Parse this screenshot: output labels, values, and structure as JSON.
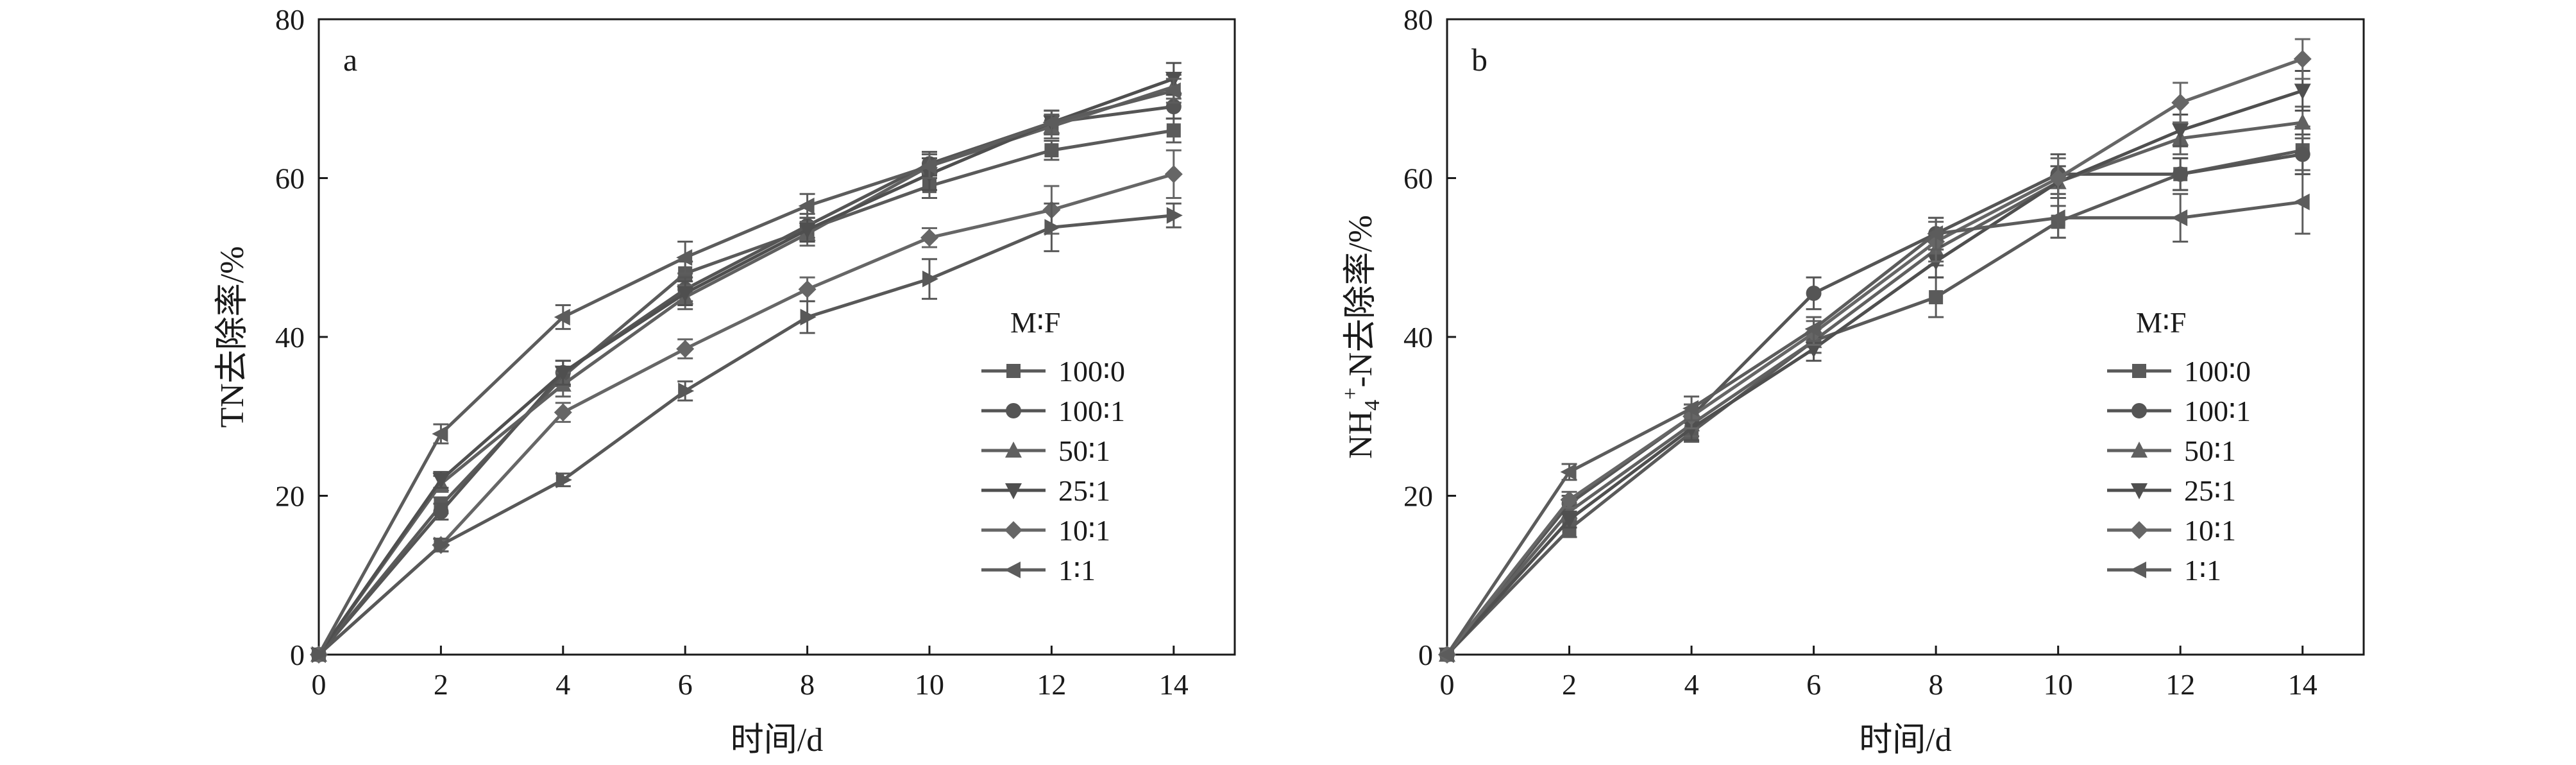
{
  "chart_data": [
    {
      "type": "line",
      "panel_label": "a",
      "xlabel": "时间/d",
      "ylabel": "TN去除率/%",
      "xlim": [
        0,
        15
      ],
      "ylim": [
        0,
        80
      ],
      "x_ticks": [
        "0",
        "2",
        "4",
        "6",
        "8",
        "10",
        "12",
        "14"
      ],
      "y_ticks": [
        "0",
        "20",
        "40",
        "60",
        "80"
      ],
      "legend_title": "M∶F",
      "legend_position": "center-right",
      "error_bars": true,
      "x": [
        0,
        2,
        4,
        6,
        8,
        10,
        12,
        14
      ],
      "series": [
        {
          "name": "100∶0",
          "marker": "square",
          "values": [
            0,
            18.8,
            35.0,
            48.0,
            53.5,
            59.0,
            63.5,
            66.0
          ],
          "errors": [
            0,
            1.0,
            1.2,
            1.5,
            1.5,
            1.5,
            1.2,
            1.5
          ]
        },
        {
          "name": "100∶1",
          "marker": "circle",
          "values": [
            0,
            18.0,
            35.5,
            46.0,
            54.0,
            61.8,
            67.0,
            69.0
          ],
          "errors": [
            0,
            1.0,
            1.5,
            1.5,
            1.5,
            1.5,
            1.5,
            1.5
          ]
        },
        {
          "name": "50∶1",
          "marker": "triangle-up",
          "values": [
            0,
            21.5,
            34.0,
            45.0,
            53.0,
            61.5,
            66.5,
            71.5
          ],
          "errors": [
            0,
            1.0,
            1.5,
            1.5,
            1.5,
            1.5,
            1.5,
            1.5
          ]
        },
        {
          "name": "25∶1",
          "marker": "triangle-down",
          "values": [
            0,
            22.0,
            35.5,
            45.5,
            53.5,
            60.5,
            67.0,
            72.5
          ],
          "errors": [
            0,
            1.0,
            1.5,
            1.5,
            1.5,
            2.0,
            1.5,
            2.0
          ]
        },
        {
          "name": "10∶1",
          "marker": "diamond",
          "values": [
            0,
            13.8,
            30.5,
            38.5,
            46.0,
            52.5,
            56.0,
            60.5
          ],
          "errors": [
            0,
            0.8,
            1.2,
            1.2,
            1.5,
            1.2,
            3.0,
            3.0
          ]
        },
        {
          "name": "1∶1",
          "marker": "triangle-left",
          "values": [
            0,
            27.8,
            42.5,
            50.0,
            56.5,
            61.5,
            67.0,
            71.0
          ],
          "errors": [
            0,
            1.2,
            1.5,
            2.0,
            1.5,
            1.5,
            1.5,
            1.5
          ]
        },
        {
          "name": "",
          "marker": "triangle-right",
          "values": [
            0,
            13.8,
            22.0,
            33.2,
            42.5,
            47.3,
            53.8,
            55.3
          ],
          "errors": [
            0,
            0.8,
            0.8,
            1.2,
            2.0,
            2.5,
            3.0,
            1.5
          ]
        }
      ]
    },
    {
      "type": "line",
      "panel_label": "b",
      "xlabel": "时间/d",
      "ylabel_parts": {
        "pre": "NH",
        "sub": "4",
        "sup": "+",
        "post": "-N去除率/%"
      },
      "xlim": [
        0,
        15
      ],
      "ylim": [
        0,
        80
      ],
      "x_ticks": [
        "0",
        "2",
        "4",
        "6",
        "8",
        "10",
        "12",
        "14"
      ],
      "y_ticks": [
        "0",
        "20",
        "40",
        "60",
        "80"
      ],
      "legend_title": "M∶F",
      "legend_position": "lower-right",
      "error_bars": true,
      "x": [
        0,
        2,
        4,
        6,
        8,
        10,
        12,
        14
      ],
      "series": [
        {
          "name": "100∶0",
          "marker": "square",
          "values": [
            0,
            15.8,
            28.0,
            39.5,
            45.0,
            54.5,
            60.5,
            63.5
          ],
          "errors": [
            0,
            1.0,
            1.2,
            1.5,
            2.5,
            2.0,
            2.0,
            3.0
          ]
        },
        {
          "name": "100∶1",
          "marker": "circle",
          "values": [
            0,
            19.0,
            30.0,
            45.5,
            53.0,
            60.5,
            60.5,
            63.0
          ],
          "errors": [
            0,
            1.0,
            1.5,
            2.0,
            2.0,
            2.5,
            2.0,
            2.5
          ]
        },
        {
          "name": "50∶1",
          "marker": "triangle-up",
          "values": [
            0,
            18.0,
            29.0,
            39.5,
            51.0,
            59.5,
            65.0,
            67.0
          ],
          "errors": [
            0,
            1.0,
            1.5,
            1.5,
            2.0,
            2.0,
            2.0,
            2.0
          ]
        },
        {
          "name": "25∶1",
          "marker": "triangle-down",
          "values": [
            0,
            17.0,
            28.5,
            38.5,
            49.5,
            59.5,
            66.0,
            71.0
          ],
          "errors": [
            0,
            1.0,
            1.5,
            1.5,
            2.0,
            2.0,
            2.0,
            2.5
          ]
        },
        {
          "name": "10∶1",
          "marker": "diamond",
          "values": [
            0,
            19.5,
            30.0,
            40.5,
            52.0,
            60.0,
            69.5,
            75.0
          ],
          "errors": [
            0,
            1.0,
            1.5,
            1.5,
            2.5,
            2.5,
            2.5,
            2.5
          ]
        },
        {
          "name": "1∶1",
          "marker": "triangle-left",
          "values": [
            0,
            23.0,
            31.0,
            41.0,
            53.0,
            55.0,
            55.0,
            57.0
          ],
          "errors": [
            0,
            1.0,
            1.5,
            1.5,
            2.0,
            2.5,
            3.0,
            4.0
          ]
        }
      ]
    }
  ]
}
